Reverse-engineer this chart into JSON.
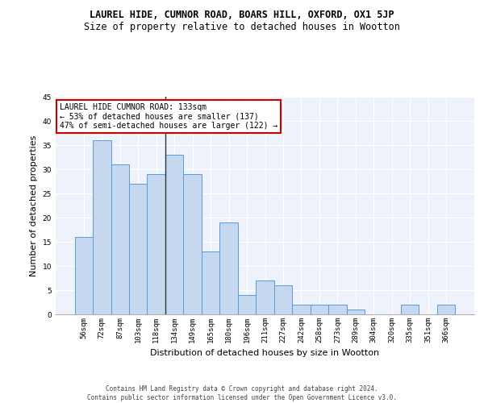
{
  "title": "LAUREL HIDE, CUMNOR ROAD, BOARS HILL, OXFORD, OX1 5JP",
  "subtitle": "Size of property relative to detached houses in Wootton",
  "xlabel": "Distribution of detached houses by size in Wootton",
  "ylabel": "Number of detached properties",
  "categories": [
    "56sqm",
    "72sqm",
    "87sqm",
    "103sqm",
    "118sqm",
    "134sqm",
    "149sqm",
    "165sqm",
    "180sqm",
    "196sqm",
    "211sqm",
    "227sqm",
    "242sqm",
    "258sqm",
    "273sqm",
    "289sqm",
    "304sqm",
    "320sqm",
    "335sqm",
    "351sqm",
    "366sqm"
  ],
  "values": [
    16,
    36,
    31,
    27,
    29,
    33,
    29,
    13,
    19,
    4,
    7,
    6,
    2,
    2,
    2,
    1,
    0,
    0,
    2,
    0,
    2
  ],
  "bar_color": "#c5d8f0",
  "bar_edge_color": "#5b9bd5",
  "highlight_index": 5,
  "highlight_line_color": "#333333",
  "ylim": [
    0,
    45
  ],
  "yticks": [
    0,
    5,
    10,
    15,
    20,
    25,
    30,
    35,
    40,
    45
  ],
  "annotation_text": "LAUREL HIDE CUMNOR ROAD: 133sqm\n← 53% of detached houses are smaller (137)\n47% of semi-detached houses are larger (122) →",
  "annotation_box_color": "#ffffff",
  "annotation_box_edge": "#cc0000",
  "footer_text": "Contains HM Land Registry data © Crown copyright and database right 2024.\nContains public sector information licensed under the Open Government Licence v3.0.",
  "bg_color": "#eef2fa",
  "grid_color": "#ffffff",
  "title_fontsize": 8.5,
  "subtitle_fontsize": 8.5,
  "tick_fontsize": 6.5,
  "ylabel_fontsize": 8,
  "xlabel_fontsize": 8,
  "annotation_fontsize": 7,
  "footer_fontsize": 5.5
}
